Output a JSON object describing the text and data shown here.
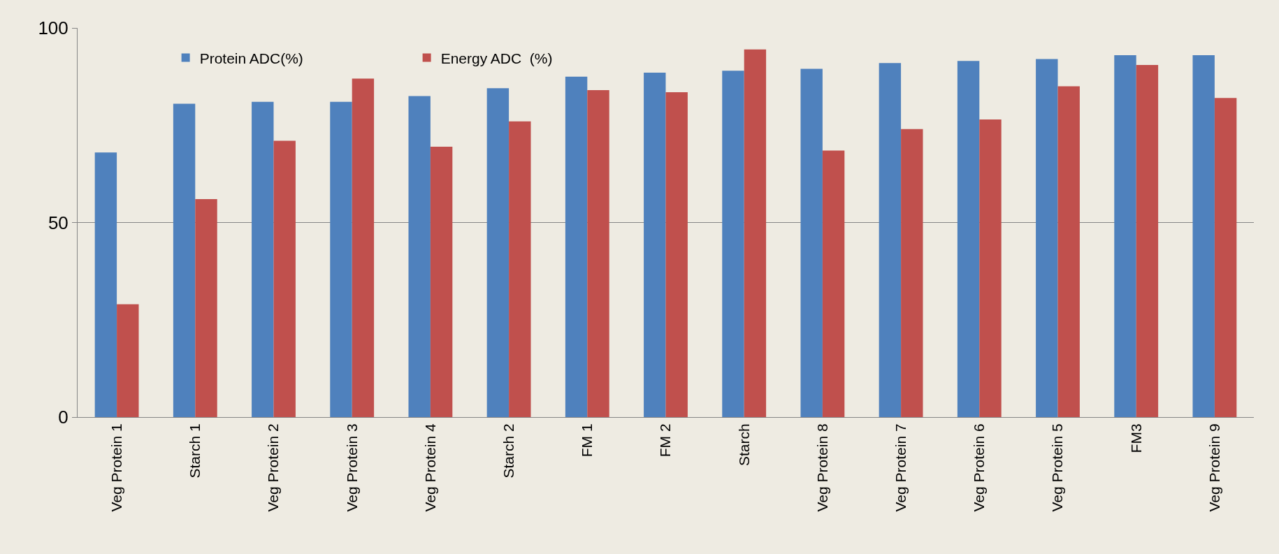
{
  "chart_data": {
    "type": "bar",
    "categories": [
      "Veg Protein 1",
      "Starch 1",
      "Veg Protein 2",
      "Veg Protein 3",
      "Veg Protein 4",
      "Starch 2",
      "FM 1",
      "FM 2",
      "Starch",
      "Veg Protein 8",
      "Veg Protein 7",
      "Veg Protein 6",
      "Veg Protein 5",
      "FM3",
      "Veg Protein 9"
    ],
    "series": [
      {
        "name": "Protein ADC(%)",
        "color": "#4f81bd",
        "values": [
          68,
          80.5,
          81,
          81,
          82.5,
          84.5,
          87.5,
          88.5,
          89,
          89.5,
          91,
          91.5,
          92,
          93,
          93
        ]
      },
      {
        "name": "Energy ADC  (%)",
        "color": "#c0504d",
        "values": [
          29,
          56,
          71,
          87,
          69.5,
          76,
          84,
          83.5,
          94.5,
          68.5,
          74,
          76.5,
          85,
          90.5,
          82
        ]
      }
    ],
    "ylim": [
      0,
      100
    ],
    "yticks": [
      0,
      50,
      100
    ],
    "grid": "y",
    "legend": "top left"
  }
}
